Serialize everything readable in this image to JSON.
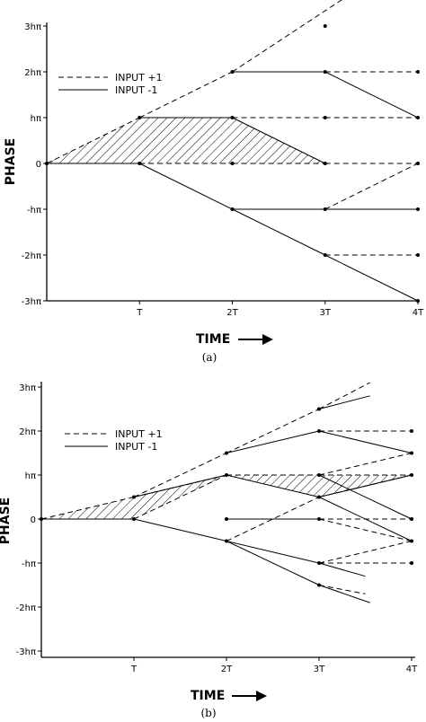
{
  "chart_data": [
    {
      "type": "line",
      "panel_label": "(a)",
      "ylabel": "PHASE",
      "xlabel": "TIME",
      "x_ticks": [
        "T",
        "2T",
        "3T",
        "4T"
      ],
      "y_ticks": [
        "3hπ",
        "2hπ",
        "hπ",
        "0",
        "-hπ",
        "-2hπ",
        "-3hπ"
      ],
      "xlim": [
        0,
        4
      ],
      "ylim": [
        -3,
        3
      ],
      "legend": [
        {
          "name": "INPUT +1",
          "style": "dashed"
        },
        {
          "name": "INPUT -1",
          "style": "solid"
        }
      ],
      "legend_position": "upper-left",
      "hatched_region": [
        [
          0,
          0
        ],
        [
          1,
          1
        ],
        [
          2,
          1
        ],
        [
          3,
          0
        ],
        [
          0,
          0
        ]
      ],
      "series": [
        {
          "name": "INPUT +1",
          "style": "dashed",
          "segments": [
            [
              [
                0,
                0
              ],
              [
                1,
                1
              ]
            ],
            [
              [
                1,
                1
              ],
              [
                2,
                2
              ]
            ],
            [
              [
                2,
                2
              ],
              [
                3.5,
                4
              ]
            ],
            [
              [
                1,
                0
              ],
              [
                2,
                0
              ]
            ],
            [
              [
                2,
                0
              ],
              [
                3,
                0
              ]
            ],
            [
              [
                3,
                0
              ],
              [
                4,
                0
              ]
            ],
            [
              [
                2,
                1
              ],
              [
                3,
                1
              ]
            ],
            [
              [
                3,
                1
              ],
              [
                4,
                1
              ]
            ],
            [
              [
                3,
                -1
              ],
              [
                4,
                0
              ]
            ],
            [
              [
                3,
                -2
              ],
              [
                4,
                -2
              ]
            ],
            [
              [
                3,
                2
              ],
              [
                4,
                2
              ]
            ]
          ]
        },
        {
          "name": "INPUT -1",
          "style": "solid",
          "segments": [
            [
              [
                0,
                0
              ],
              [
                1,
                0
              ]
            ],
            [
              [
                1,
                1
              ],
              [
                2,
                1
              ]
            ],
            [
              [
                2,
                1
              ],
              [
                3,
                0
              ]
            ],
            [
              [
                1,
                0
              ],
              [
                2,
                -1
              ]
            ],
            [
              [
                2,
                -1
              ],
              [
                3,
                -1
              ]
            ],
            [
              [
                3,
                -1
              ],
              [
                4,
                -1
              ]
            ],
            [
              [
                2,
                -1
              ],
              [
                3,
                -2
              ]
            ],
            [
              [
                3,
                -2
              ],
              [
                4,
                -3
              ]
            ],
            [
              [
                2,
                2
              ],
              [
                3,
                2
              ]
            ],
            [
              [
                3,
                2
              ],
              [
                4,
                1
              ]
            ]
          ]
        }
      ],
      "points": [
        [
          0,
          0
        ],
        [
          1,
          1
        ],
        [
          1,
          0
        ],
        [
          2,
          2
        ],
        [
          2,
          1
        ],
        [
          2,
          0
        ],
        [
          2,
          -1
        ],
        [
          3,
          3
        ],
        [
          3,
          2
        ],
        [
          3,
          1
        ],
        [
          3,
          0
        ],
        [
          3,
          -1
        ],
        [
          3,
          -2
        ],
        [
          4,
          2
        ],
        [
          4,
          1
        ],
        [
          4,
          0
        ],
        [
          4,
          -1
        ],
        [
          4,
          -2
        ],
        [
          4,
          -3
        ]
      ]
    },
    {
      "type": "line",
      "panel_label": "(b)",
      "ylabel": "PHASE",
      "xlabel": "TIME",
      "x_ticks": [
        "T",
        "2T",
        "3T",
        "4T"
      ],
      "y_ticks": [
        "3hπ",
        "2hπ",
        "hπ",
        "0",
        "-hπ",
        "-2hπ",
        "-3hπ"
      ],
      "xlim": [
        0,
        4
      ],
      "ylim": [
        -3,
        3
      ],
      "legend": [
        {
          "name": "INPUT +1",
          "style": "dashed"
        },
        {
          "name": "INPUT -1",
          "style": "solid"
        }
      ],
      "legend_position": "upper-left",
      "hatched_region": [
        [
          0,
          0
        ],
        [
          1,
          0.5
        ],
        [
          2,
          1
        ],
        [
          3,
          1
        ],
        [
          4,
          1
        ],
        [
          3,
          0.5
        ],
        [
          2,
          1
        ],
        [
          1,
          0
        ],
        [
          0,
          0
        ]
      ],
      "series": [
        {
          "name": "INPUT +1",
          "style": "dashed",
          "segments": [
            [
              [
                0,
                0
              ],
              [
                1,
                0.5
              ]
            ],
            [
              [
                1,
                0.5
              ],
              [
                2,
                1.5
              ]
            ],
            [
              [
                2,
                1.5
              ],
              [
                3,
                2.5
              ]
            ],
            [
              [
                3,
                2.5
              ],
              [
                3.55,
                3.1
              ]
            ],
            [
              [
                1,
                0.5
              ],
              [
                2,
                1
              ]
            ],
            [
              [
                2,
                1
              ],
              [
                3,
                1
              ]
            ],
            [
              [
                3,
                1
              ],
              [
                4,
                1
              ]
            ],
            [
              [
                1,
                0
              ],
              [
                2,
                1
              ]
            ],
            [
              [
                2,
                0
              ],
              [
                3,
                0
              ]
            ],
            [
              [
                3,
                0
              ],
              [
                4,
                0
              ]
            ],
            [
              [
                2,
                -0.5
              ],
              [
                3,
                0.5
              ]
            ],
            [
              [
                3,
                0.5
              ],
              [
                4,
                1
              ]
            ],
            [
              [
                3,
                2
              ],
              [
                4,
                2
              ]
            ],
            [
              [
                3,
                1
              ],
              [
                4,
                1.5
              ]
            ],
            [
              [
                3,
                -1
              ],
              [
                4,
                -0.5
              ]
            ],
            [
              [
                3,
                -1
              ],
              [
                4,
                -1
              ]
            ],
            [
              [
                3,
                -1.5
              ],
              [
                3.5,
                -1.7
              ]
            ],
            [
              [
                3,
                0
              ],
              [
                4,
                -0.5
              ]
            ]
          ]
        },
        {
          "name": "INPUT -1",
          "style": "solid",
          "segments": [
            [
              [
                0,
                0
              ],
              [
                1,
                0
              ]
            ],
            [
              [
                1,
                0.5
              ],
              [
                2,
                1
              ]
            ],
            [
              [
                2,
                1
              ],
              [
                3,
                0.5
              ]
            ],
            [
              [
                3,
                0.5
              ],
              [
                4,
                1
              ]
            ],
            [
              [
                1,
                0
              ],
              [
                2,
                -0.5
              ]
            ],
            [
              [
                2,
                -0.5
              ],
              [
                3,
                -1
              ]
            ],
            [
              [
                3,
                -1
              ],
              [
                3.5,
                -1.3
              ]
            ],
            [
              [
                2,
                -0.5
              ],
              [
                3,
                -1.5
              ]
            ],
            [
              [
                3,
                -1.5
              ],
              [
                3.55,
                -1.9
              ]
            ],
            [
              [
                2,
                1.5
              ],
              [
                3,
                2
              ]
            ],
            [
              [
                3,
                2
              ],
              [
                4,
                1.5
              ]
            ],
            [
              [
                3,
                2.5
              ],
              [
                3.55,
                2.8
              ]
            ],
            [
              [
                2,
                0
              ],
              [
                3,
                0
              ]
            ],
            [
              [
                3,
                0.5
              ],
              [
                4,
                -0.5
              ]
            ],
            [
              [
                3,
                1
              ],
              [
                4,
                0
              ]
            ]
          ]
        }
      ],
      "points": [
        [
          0,
          0
        ],
        [
          1,
          0.5
        ],
        [
          1,
          0
        ],
        [
          2,
          1.5
        ],
        [
          2,
          1
        ],
        [
          2,
          0
        ],
        [
          2,
          -0.5
        ],
        [
          3,
          2.5
        ],
        [
          3,
          2
        ],
        [
          3,
          1
        ],
        [
          3,
          0.5
        ],
        [
          3,
          0
        ],
        [
          3,
          -1
        ],
        [
          3,
          -1.5
        ],
        [
          4,
          2
        ],
        [
          4,
          1.5
        ],
        [
          4,
          1
        ],
        [
          4,
          0
        ],
        [
          4,
          -0.5
        ],
        [
          4,
          -1
        ]
      ]
    }
  ]
}
